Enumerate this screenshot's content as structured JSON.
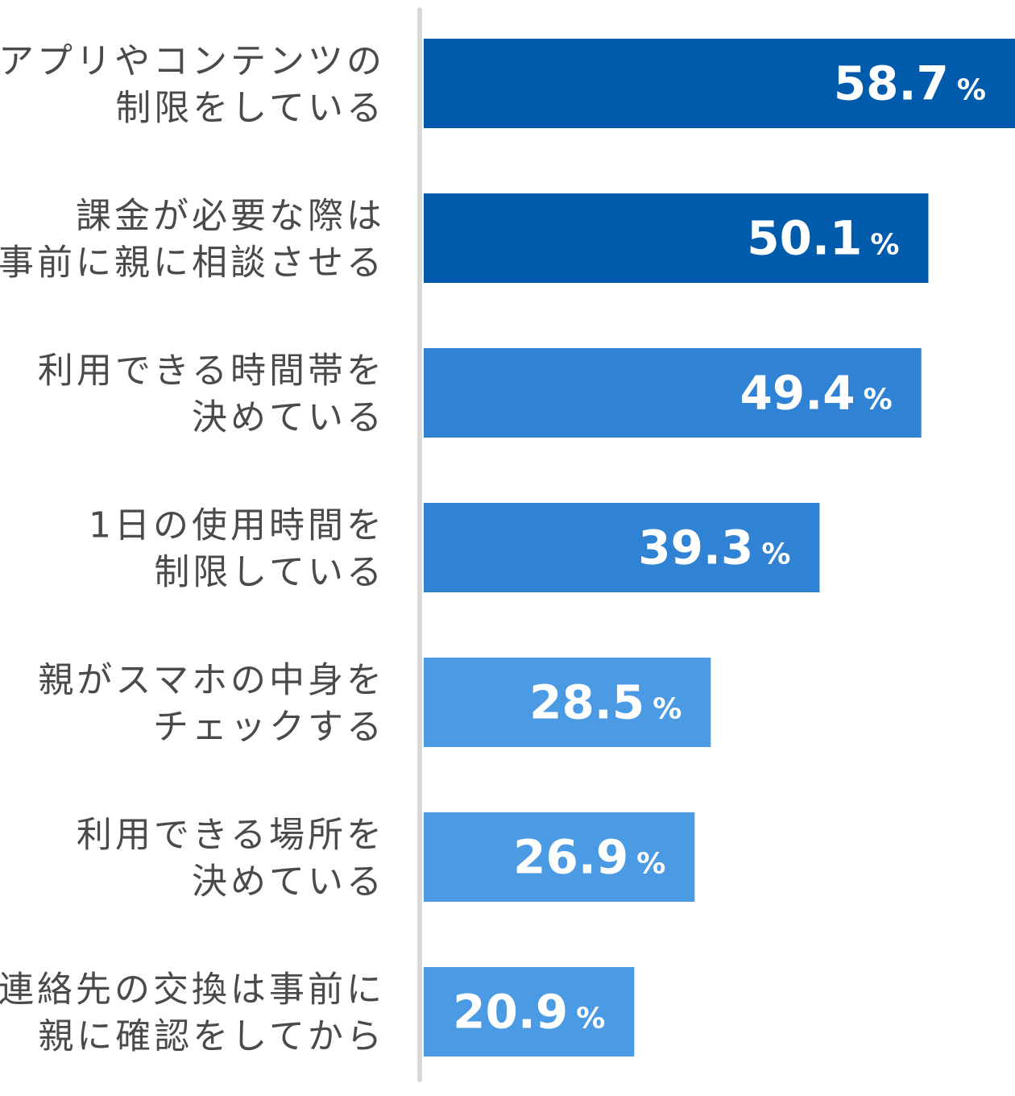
{
  "chart_data": {
    "type": "bar",
    "orientation": "horizontal",
    "categories": [
      [
        "アプリやコンテンツの",
        "制限をしている"
      ],
      [
        "課金が必要な際は",
        "事前に親に相談させる"
      ],
      [
        "利用できる時間帯を",
        "決めている"
      ],
      [
        "1日の使用時間を",
        "制限している"
      ],
      [
        "親がスマホの中身を",
        "チェックする"
      ],
      [
        "利用できる場所を",
        "決めている"
      ],
      [
        "連絡先の交換は事前に",
        "親に確認をしてから"
      ]
    ],
    "values": [
      58.7,
      50.1,
      49.4,
      39.3,
      28.5,
      26.9,
      20.9
    ],
    "value_labels": [
      "58.7",
      "50.1",
      "49.4",
      "39.3",
      "28.5",
      "26.9",
      "20.9"
    ],
    "unit": "%",
    "xlim": [
      0,
      58.7
    ],
    "bar_colors": [
      "#005bac",
      "#005bac",
      "#2f82d4",
      "#2f82d4",
      "#4a9ae4",
      "#4a9ae4",
      "#4a9ae4"
    ],
    "axis_color": "#d9d9d9",
    "grid": false,
    "legend": "none"
  }
}
